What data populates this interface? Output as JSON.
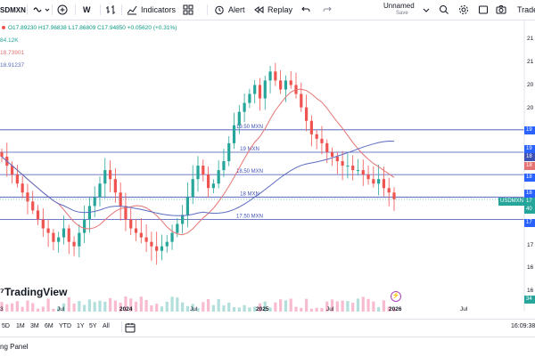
{
  "toolbar": {
    "symbol": "SDMXN",
    "interval": "W",
    "indicators": "Indicators",
    "alert": "Alert",
    "replay": "Replay",
    "layout_name": "Unnamed",
    "layout_status": "Save",
    "trade": "Trade"
  },
  "legend": {
    "ohlc": "O17.89230 H17.96838 L17.86809 C17.94850 +0.05620 (+0.31%)",
    "volume": "84.12K",
    "ma1": "18.73901",
    "ma2": "18.91237"
  },
  "horizontal_lines": [
    {
      "label": "19.50 MXN",
      "value": 19.5
    },
    {
      "label": "19 MXN",
      "value": 19.0
    },
    {
      "label": "18.50 MXN",
      "value": 18.5
    },
    {
      "label": "18 MXN",
      "value": 18.0
    },
    {
      "label": "17.50 MXN",
      "value": 17.5
    }
  ],
  "price_axis": {
    "labels": [
      "21",
      "21",
      "20",
      "20",
      "19",
      "18",
      "17",
      "16",
      "16"
    ],
    "badges": [
      "19",
      "19",
      "18",
      "18",
      "18",
      "18",
      "17",
      "40",
      "17",
      "34"
    ],
    "symbol_badge": "USDMXN"
  },
  "time_axis": {
    "labels": [
      "3",
      "Jul",
      "2024",
      "Jul",
      "2025",
      "Jul",
      "2026",
      "Jul"
    ]
  },
  "watermark": "TradingView",
  "timeframes": [
    "5D",
    "1M",
    "3M",
    "6M",
    "YTD",
    "1Y",
    "5Y",
    "All"
  ],
  "clock": "16:09:38",
  "panel_label": "ng Panel",
  "colors": {
    "up": "#26a69a",
    "down": "#ef5350",
    "ma_short": "#e57373",
    "ma_long": "#5c6bc0",
    "hline": "#3f51b5",
    "badge_blue": "#2962ff"
  },
  "chart_data": {
    "type": "candlestick",
    "y_range": [
      16.0,
      21.8
    ],
    "close_series": [
      18.9,
      18.7,
      18.5,
      18.3,
      18.1,
      17.9,
      17.7,
      17.5,
      17.3,
      17.2,
      17.0,
      17.1,
      17.3,
      17.0,
      16.9,
      17.2,
      17.5,
      17.8,
      18.0,
      18.3,
      18.6,
      18.4,
      18.1,
      17.8,
      17.5,
      17.3,
      17.2,
      17.1,
      17.0,
      16.9,
      16.8,
      16.9,
      17.0,
      17.2,
      17.4,
      17.6,
      18.0,
      18.4,
      18.7,
      18.5,
      18.2,
      18.3,
      18.6,
      18.8,
      19.2,
      19.6,
      19.9,
      20.1,
      20.3,
      20.5,
      20.2,
      20.6,
      20.8,
      20.6,
      20.4,
      20.6,
      20.5,
      20.3,
      20.0,
      19.7,
      19.4,
      19.3,
      19.2,
      19.0,
      18.9,
      18.8,
      18.7,
      18.7,
      18.6,
      18.6,
      18.5,
      18.4,
      18.3,
      18.4,
      18.2,
      18.1,
      17.95
    ],
    "current_close": 17.9485
  }
}
